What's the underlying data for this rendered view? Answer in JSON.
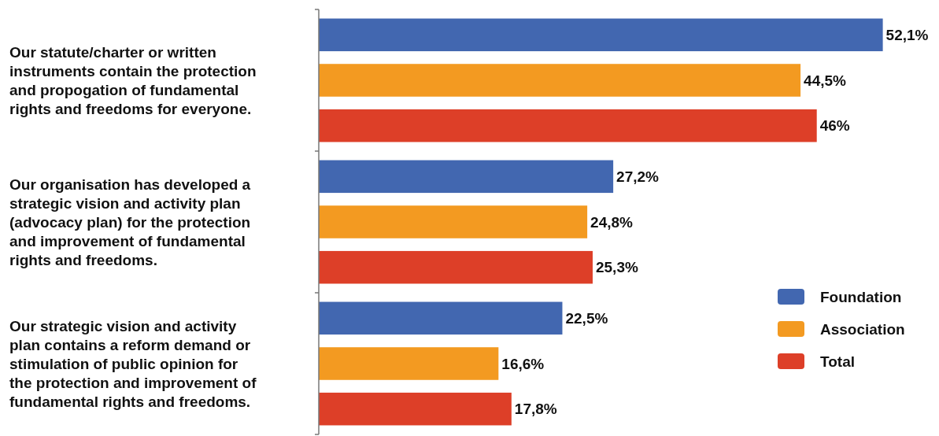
{
  "chart_data": {
    "type": "bar",
    "orientation": "horizontal",
    "categories": [
      "Our statute/charter or written instruments contain the protection and propogation of fundamental rights and freedoms for everyone.",
      "Our organisation has developed a strategic vision and activity plan (advocacy plan) for the protection and improvement of fundamental rights and freedoms.",
      "Our strategic vision and activity plan contains a reform demand or stimulation of public opinion for the protection and improvement of fundamental rights and freedoms."
    ],
    "series": [
      {
        "name": "Foundation",
        "color": "#4267b0",
        "values": [
          52.1,
          27.2,
          22.5
        ],
        "value_labels": [
          "52,1%",
          "27,2%",
          "22,5%"
        ]
      },
      {
        "name": "Association",
        "color": "#f39a21",
        "values": [
          44.5,
          24.8,
          16.6
        ],
        "value_labels": [
          "44,5%",
          "24,8%",
          "16,6%"
        ]
      },
      {
        "name": "Total",
        "color": "#dd3f28",
        "values": [
          46,
          25.3,
          17.8
        ],
        "value_labels": [
          "46%",
          "25,3%",
          "17,8%"
        ]
      }
    ],
    "xlim": [
      0,
      57
    ],
    "tick_labels": "y",
    "legend": "bottom right"
  }
}
